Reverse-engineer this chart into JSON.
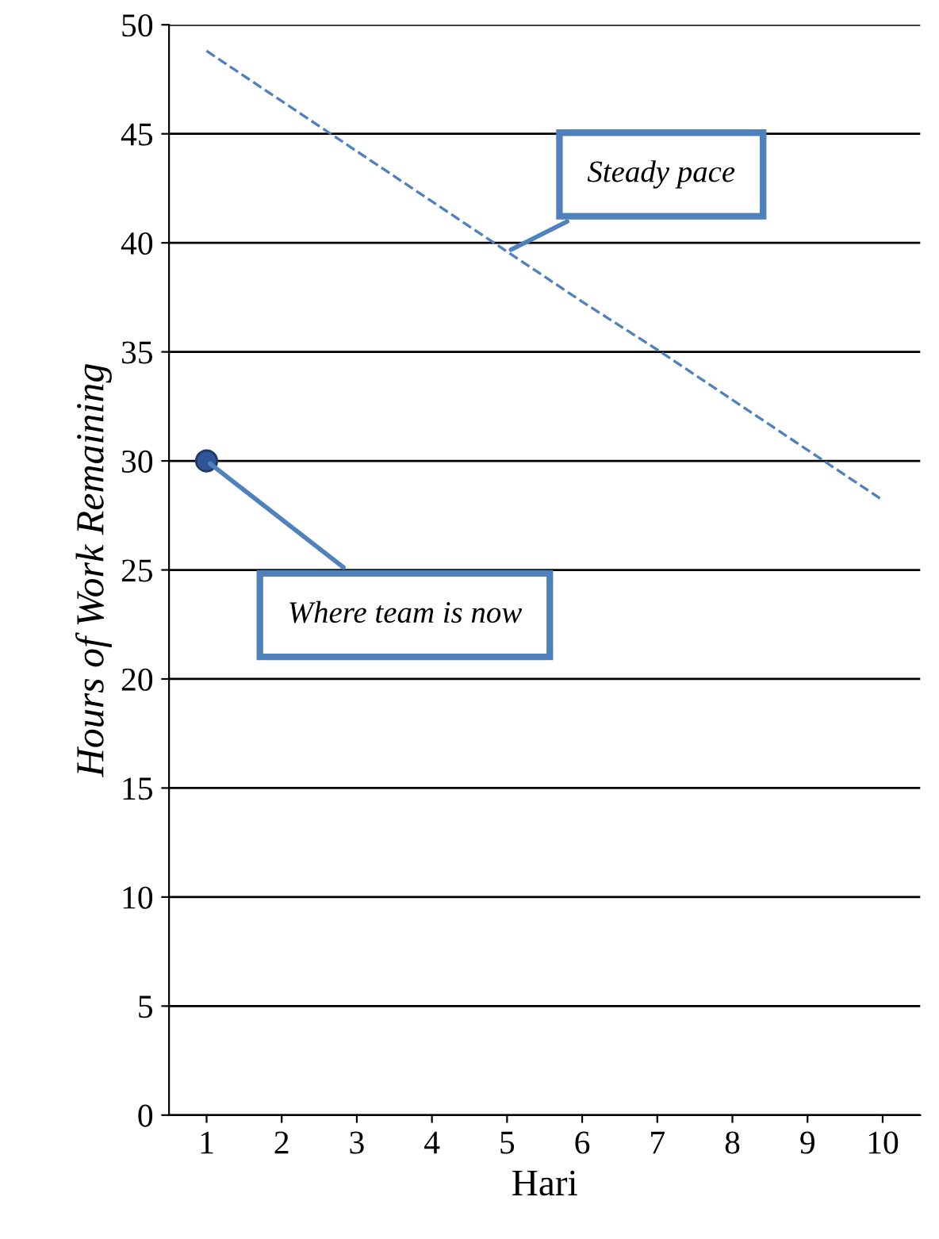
{
  "chart_data": {
    "type": "line",
    "xlabel": "Hari",
    "ylabel": "Hours of Work Remaining",
    "categories": [
      "1",
      "2",
      "3",
      "4",
      "5",
      "6",
      "7",
      "8",
      "9",
      "10"
    ],
    "series": [
      {
        "color": "#4f81bd",
        "line_style": "dashed",
        "marker": "none",
        "values": [
          48.8,
          46.5,
          44.2,
          41.9,
          39.6,
          37.3,
          35.1,
          32.8,
          30.5,
          28.2
        ]
      },
      {
        "type": "scatter",
        "color": "#2f5597",
        "marker": "circle",
        "x": [
          "1"
        ],
        "values": [
          30
        ]
      }
    ],
    "ylim": [
      0,
      50
    ],
    "yticks": [
      0,
      5,
      10,
      15,
      20,
      25,
      30,
      35,
      40,
      45,
      50
    ],
    "grid": "y",
    "annotations": [
      {
        "text": "Steady pace",
        "x": "5",
        "y": 39.6
      },
      {
        "text": "Where team is now",
        "x": "1",
        "y": 30
      }
    ]
  }
}
